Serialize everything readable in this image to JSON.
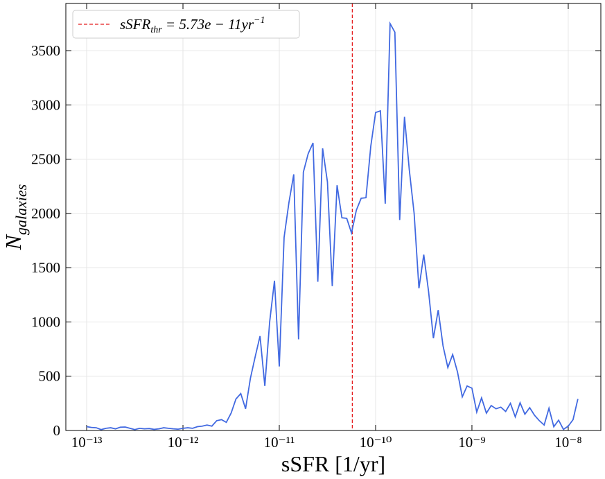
{
  "chart_data": {
    "type": "line",
    "x_label": "sSFR [1/yr]",
    "y_label": {
      "base": "N",
      "sub": "galaxies"
    },
    "x": [
      1e-13,
      1.122e-13,
      1.259e-13,
      1.413e-13,
      1.585e-13,
      1.778e-13,
      1.995e-13,
      2.239e-13,
      2.512e-13,
      2.818e-13,
      3.162e-13,
      3.548e-13,
      3.981e-13,
      4.467e-13,
      5.012e-13,
      5.623e-13,
      6.31e-13,
      7.079e-13,
      7.943e-13,
      8.913e-13,
      1e-12,
      1.122e-12,
      1.259e-12,
      1.413e-12,
      1.585e-12,
      1.778e-12,
      1.995e-12,
      2.239e-12,
      2.512e-12,
      2.818e-12,
      3.162e-12,
      3.548e-12,
      3.981e-12,
      4.467e-12,
      5.012e-12,
      5.623e-12,
      6.31e-12,
      7.079e-12,
      7.943e-12,
      8.913e-12,
      1e-11,
      1.122e-11,
      1.259e-11,
      1.413e-11,
      1.585e-11,
      1.778e-11,
      1.995e-11,
      2.239e-11,
      2.512e-11,
      2.818e-11,
      3.162e-11,
      3.548e-11,
      3.981e-11,
      4.467e-11,
      5.012e-11,
      5.623e-11,
      6.31e-11,
      7.079e-11,
      7.943e-11,
      8.913e-11,
      1e-10,
      1.122e-10,
      1.259e-10,
      1.413e-10,
      1.585e-10,
      1.778e-10,
      1.995e-10,
      2.239e-10,
      2.512e-10,
      2.818e-10,
      3.162e-10,
      3.548e-10,
      3.981e-10,
      4.467e-10,
      5.012e-10,
      5.623e-10,
      6.31e-10,
      7.079e-10,
      7.943e-10,
      8.913e-10,
      1e-09,
      1.122e-09,
      1.259e-09,
      1.413e-09,
      1.585e-09,
      1.778e-09,
      1.995e-09,
      2.239e-09,
      2.512e-09,
      2.818e-09,
      3.162e-09,
      3.548e-09,
      3.981e-09,
      4.467e-09,
      5.012e-09,
      5.623e-09,
      6.31e-09,
      7.079e-09,
      7.943e-09,
      8.913e-09,
      1e-08,
      1.122e-08,
      1.259e-08
    ],
    "values": [
      35,
      28,
      25,
      8,
      20,
      25,
      15,
      30,
      32,
      20,
      8,
      20,
      15,
      18,
      10,
      15,
      25,
      20,
      15,
      12,
      20,
      25,
      20,
      35,
      40,
      50,
      40,
      90,
      100,
      75,
      160,
      290,
      340,
      200,
      480,
      680,
      870,
      410,
      1000,
      1380,
      590,
      1780,
      2100,
      2360,
      840,
      2380,
      2550,
      2650,
      1370,
      2600,
      2290,
      1330,
      2260,
      1960,
      1955,
      1820,
      2030,
      2140,
      2145,
      2620,
      2930,
      2945,
      2090,
      3750,
      3670,
      1940,
      2890,
      2400,
      2000,
      1310,
      1620,
      1280,
      850,
      1110,
      780,
      580,
      700,
      540,
      310,
      410,
      390,
      170,
      300,
      160,
      230,
      200,
      215,
      175,
      250,
      125,
      255,
      150,
      210,
      140,
      90,
      50,
      205,
      35,
      95,
      10,
      40,
      100,
      290
    ],
    "color": "#4169e1",
    "threshold": {
      "value": 5.73e-11,
      "color": "#e41a1c",
      "name": {
        "base": "sSFR",
        "sub": "thr",
        "rest": " = 5.73e − 11yr",
        "sup": "−1"
      }
    },
    "x_log": true,
    "xlim": [
      6.08e-14,
      2.18e-08
    ],
    "xticks": [
      {
        "value": 1e-13,
        "label": "10⁻¹³"
      },
      {
        "value": 1e-12,
        "label": "10⁻¹²"
      },
      {
        "value": 1e-11,
        "label": "10⁻¹¹"
      },
      {
        "value": 1e-10,
        "label": "10⁻¹⁰"
      },
      {
        "value": 1e-09,
        "label": "10⁻⁹"
      },
      {
        "value": 1e-08,
        "label": "10⁻⁸"
      }
    ],
    "ylim": [
      0,
      3935
    ],
    "yticks": [
      0,
      500,
      1000,
      1500,
      2000,
      2500,
      3000,
      3500
    ],
    "grid": true,
    "legend": "upper left"
  }
}
